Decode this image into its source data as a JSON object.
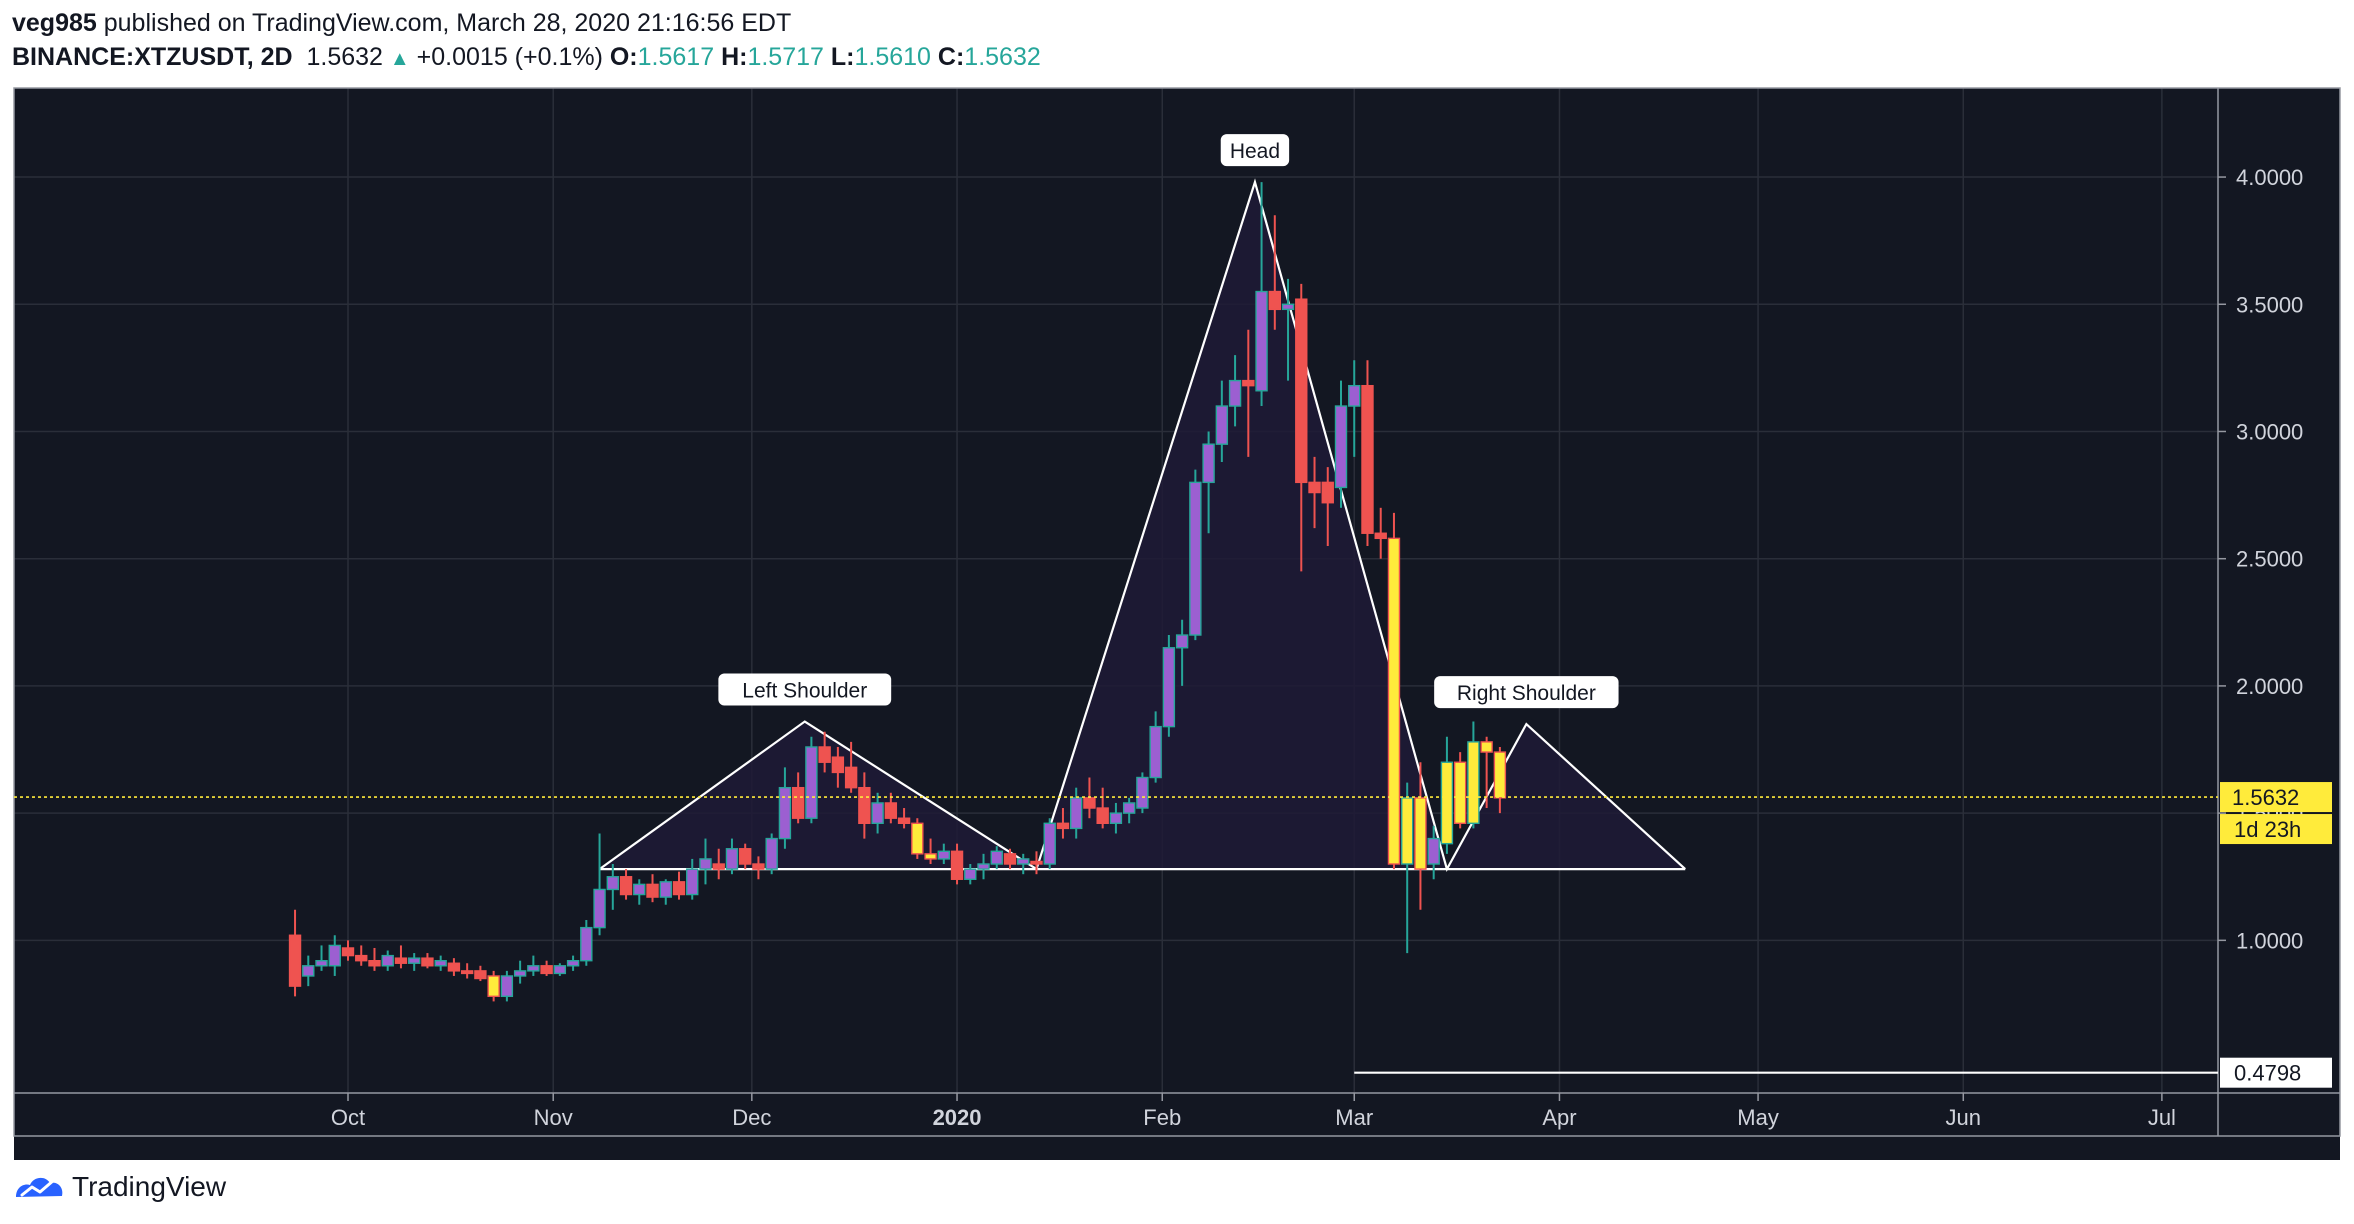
{
  "header": {
    "publisher": "veg985",
    "published_text": "published on TradingView.com, March 28, 2020 21:16:56 EDT",
    "symbol": "BINANCE:XTZUSDT, 2D",
    "last": "1.5632",
    "change": "+0.0015 (+0.1%)",
    "o_label": "O:",
    "o": "1.5617",
    "h_label": "H:",
    "h": "1.5717",
    "l_label": "L:",
    "l": "1.5610",
    "c_label": "C:",
    "c": "1.5632"
  },
  "footer": {
    "brand": "TradingView",
    "icon": "tradingview-logo-icon"
  },
  "colors": {
    "background": "#131722",
    "grid": "#2a2e39",
    "up": "#26a69a",
    "down": "#ef5350",
    "purple": "#9c5fd1",
    "yellow": "#ffeb3b",
    "pattern_fill": "#1e1a36",
    "pattern_line": "#ffffff",
    "price_line": "#ffeb3b"
  },
  "chart_data": {
    "type": "candlestick",
    "symbol": "BINANCE:XTZUSDT",
    "interval": "2D",
    "ylim": [
      0.4,
      4.35
    ],
    "y_ticks": [
      1.0,
      1.5,
      2.0,
      2.5,
      3.0,
      3.5,
      4.0
    ],
    "y_tick_labels": [
      "1.0000",
      "1.5000",
      "2.0000",
      "2.5000",
      "3.0000",
      "3.5000",
      "4.0000"
    ],
    "x_ticks": [
      {
        "label": "Oct",
        "date": "2019-10-01"
      },
      {
        "label": "Nov",
        "date": "2019-11-01"
      },
      {
        "label": "Dec",
        "date": "2019-12-01"
      },
      {
        "label": "2020",
        "date": "2020-01-01"
      },
      {
        "label": "Feb",
        "date": "2020-02-01"
      },
      {
        "label": "Mar",
        "date": "2020-03-01"
      },
      {
        "label": "Apr",
        "date": "2020-04-01"
      },
      {
        "label": "May",
        "date": "2020-05-01"
      },
      {
        "label": "Jun",
        "date": "2020-06-01"
      },
      {
        "label": "Jul",
        "date": "2020-07-01"
      }
    ],
    "current_price": 1.5632,
    "current_price_label": "1.5632",
    "countdown_label": "1d 23h",
    "bottom_line_value": 0.4798,
    "bottom_line_label": "0.4798",
    "bottom_line_start": "2020-03-01",
    "pattern": {
      "points": [
        {
          "date": "2019-11-08",
          "value": 1.28
        },
        {
          "date": "2019-12-09",
          "value": 1.86
        },
        {
          "date": "2020-01-13",
          "value": 1.28
        },
        {
          "date": "2020-02-15",
          "value": 3.98
        },
        {
          "date": "2020-03-15",
          "value": 1.28
        },
        {
          "date": "2020-03-27",
          "value": 1.85
        },
        {
          "date": "2020-04-20",
          "value": 1.28
        }
      ],
      "neckline": 1.28,
      "labels": [
        {
          "text": "Left Shoulder",
          "date": "2019-12-09",
          "value": 1.86
        },
        {
          "text": "Head",
          "date": "2020-02-15",
          "value": 3.98
        },
        {
          "text": "Right Shoulder",
          "date": "2020-03-27",
          "value": 1.85
        }
      ]
    },
    "candles": [
      {
        "date": "2019-09-23",
        "o": 1.02,
        "h": 1.12,
        "l": 0.78,
        "c": 0.82
      },
      {
        "date": "2019-09-25",
        "o": 0.86,
        "h": 0.94,
        "l": 0.82,
        "c": 0.9
      },
      {
        "date": "2019-09-27",
        "o": 0.9,
        "h": 0.98,
        "l": 0.88,
        "c": 0.92
      },
      {
        "date": "2019-09-29",
        "o": 0.9,
        "h": 1.02,
        "l": 0.86,
        "c": 0.98
      },
      {
        "date": "2019-10-01",
        "o": 0.97,
        "h": 1.0,
        "l": 0.92,
        "c": 0.94
      },
      {
        "date": "2019-10-03",
        "o": 0.94,
        "h": 0.98,
        "l": 0.9,
        "c": 0.92
      },
      {
        "date": "2019-10-05",
        "o": 0.92,
        "h": 0.97,
        "l": 0.88,
        "c": 0.9
      },
      {
        "date": "2019-10-07",
        "o": 0.9,
        "h": 0.96,
        "l": 0.88,
        "c": 0.94
      },
      {
        "date": "2019-10-09",
        "o": 0.93,
        "h": 0.98,
        "l": 0.89,
        "c": 0.91
      },
      {
        "date": "2019-10-11",
        "o": 0.91,
        "h": 0.95,
        "l": 0.88,
        "c": 0.93
      },
      {
        "date": "2019-10-13",
        "o": 0.93,
        "h": 0.95,
        "l": 0.89,
        "c": 0.9
      },
      {
        "date": "2019-10-15",
        "o": 0.9,
        "h": 0.94,
        "l": 0.88,
        "c": 0.92
      },
      {
        "date": "2019-10-17",
        "o": 0.91,
        "h": 0.93,
        "l": 0.86,
        "c": 0.88
      },
      {
        "date": "2019-10-19",
        "o": 0.88,
        "h": 0.91,
        "l": 0.85,
        "c": 0.87
      },
      {
        "date": "2019-10-21",
        "o": 0.88,
        "h": 0.9,
        "l": 0.84,
        "c": 0.85
      },
      {
        "date": "2019-10-23",
        "o": 0.86,
        "h": 0.88,
        "l": 0.76,
        "c": 0.78
      },
      {
        "date": "2019-10-25",
        "o": 0.78,
        "h": 0.88,
        "l": 0.76,
        "c": 0.86
      },
      {
        "date": "2019-10-27",
        "o": 0.86,
        "h": 0.92,
        "l": 0.83,
        "c": 0.88
      },
      {
        "date": "2019-10-29",
        "o": 0.88,
        "h": 0.94,
        "l": 0.86,
        "c": 0.9
      },
      {
        "date": "2019-10-31",
        "o": 0.9,
        "h": 0.92,
        "l": 0.86,
        "c": 0.87
      },
      {
        "date": "2019-11-02",
        "o": 0.87,
        "h": 0.91,
        "l": 0.86,
        "c": 0.9
      },
      {
        "date": "2019-11-04",
        "o": 0.9,
        "h": 0.94,
        "l": 0.88,
        "c": 0.92
      },
      {
        "date": "2019-11-06",
        "o": 0.92,
        "h": 1.08,
        "l": 0.9,
        "c": 1.05
      },
      {
        "date": "2019-11-08",
        "o": 1.05,
        "h": 1.42,
        "l": 1.02,
        "c": 1.2
      },
      {
        "date": "2019-11-10",
        "o": 1.2,
        "h": 1.3,
        "l": 1.12,
        "c": 1.25
      },
      {
        "date": "2019-11-12",
        "o": 1.25,
        "h": 1.28,
        "l": 1.16,
        "c": 1.18
      },
      {
        "date": "2019-11-14",
        "o": 1.18,
        "h": 1.24,
        "l": 1.14,
        "c": 1.22
      },
      {
        "date": "2019-11-16",
        "o": 1.22,
        "h": 1.26,
        "l": 1.15,
        "c": 1.17
      },
      {
        "date": "2019-11-18",
        "o": 1.17,
        "h": 1.24,
        "l": 1.14,
        "c": 1.23
      },
      {
        "date": "2019-11-20",
        "o": 1.23,
        "h": 1.27,
        "l": 1.16,
        "c": 1.18
      },
      {
        "date": "2019-11-22",
        "o": 1.18,
        "h": 1.32,
        "l": 1.16,
        "c": 1.28
      },
      {
        "date": "2019-11-24",
        "o": 1.28,
        "h": 1.4,
        "l": 1.22,
        "c": 1.32
      },
      {
        "date": "2019-11-26",
        "o": 1.3,
        "h": 1.36,
        "l": 1.24,
        "c": 1.28
      },
      {
        "date": "2019-11-28",
        "o": 1.28,
        "h": 1.4,
        "l": 1.26,
        "c": 1.36
      },
      {
        "date": "2019-11-30",
        "o": 1.36,
        "h": 1.38,
        "l": 1.28,
        "c": 1.3
      },
      {
        "date": "2019-12-02",
        "o": 1.3,
        "h": 1.33,
        "l": 1.24,
        "c": 1.28
      },
      {
        "date": "2019-12-04",
        "o": 1.28,
        "h": 1.42,
        "l": 1.26,
        "c": 1.4
      },
      {
        "date": "2019-12-06",
        "o": 1.4,
        "h": 1.68,
        "l": 1.36,
        "c": 1.6
      },
      {
        "date": "2019-12-08",
        "o": 1.6,
        "h": 1.66,
        "l": 1.46,
        "c": 1.48
      },
      {
        "date": "2019-12-10",
        "o": 1.48,
        "h": 1.8,
        "l": 1.46,
        "c": 1.76
      },
      {
        "date": "2019-12-12",
        "o": 1.76,
        "h": 1.82,
        "l": 1.66,
        "c": 1.7
      },
      {
        "date": "2019-12-14",
        "o": 1.72,
        "h": 1.76,
        "l": 1.6,
        "c": 1.66
      },
      {
        "date": "2019-12-16",
        "o": 1.68,
        "h": 1.78,
        "l": 1.58,
        "c": 1.6
      },
      {
        "date": "2019-12-18",
        "o": 1.6,
        "h": 1.66,
        "l": 1.4,
        "c": 1.46
      },
      {
        "date": "2019-12-20",
        "o": 1.46,
        "h": 1.58,
        "l": 1.42,
        "c": 1.54
      },
      {
        "date": "2019-12-22",
        "o": 1.54,
        "h": 1.58,
        "l": 1.46,
        "c": 1.48
      },
      {
        "date": "2019-12-24",
        "o": 1.48,
        "h": 1.52,
        "l": 1.44,
        "c": 1.46
      },
      {
        "date": "2019-12-26",
        "o": 1.46,
        "h": 1.48,
        "l": 1.32,
        "c": 1.34
      },
      {
        "date": "2019-12-28",
        "o": 1.34,
        "h": 1.4,
        "l": 1.3,
        "c": 1.32
      },
      {
        "date": "2019-12-30",
        "o": 1.32,
        "h": 1.38,
        "l": 1.3,
        "c": 1.35
      },
      {
        "date": "2020-01-01",
        "o": 1.35,
        "h": 1.38,
        "l": 1.22,
        "c": 1.24
      },
      {
        "date": "2020-01-03",
        "o": 1.24,
        "h": 1.3,
        "l": 1.22,
        "c": 1.28
      },
      {
        "date": "2020-01-05",
        "o": 1.28,
        "h": 1.34,
        "l": 1.24,
        "c": 1.3
      },
      {
        "date": "2020-01-07",
        "o": 1.3,
        "h": 1.37,
        "l": 1.28,
        "c": 1.35
      },
      {
        "date": "2020-01-09",
        "o": 1.34,
        "h": 1.36,
        "l": 1.28,
        "c": 1.3
      },
      {
        "date": "2020-01-11",
        "o": 1.3,
        "h": 1.34,
        "l": 1.26,
        "c": 1.32
      },
      {
        "date": "2020-01-13",
        "o": 1.31,
        "h": 1.35,
        "l": 1.26,
        "c": 1.3
      },
      {
        "date": "2020-01-15",
        "o": 1.3,
        "h": 1.48,
        "l": 1.28,
        "c": 1.46
      },
      {
        "date": "2020-01-17",
        "o": 1.46,
        "h": 1.52,
        "l": 1.4,
        "c": 1.44
      },
      {
        "date": "2020-01-19",
        "o": 1.44,
        "h": 1.6,
        "l": 1.4,
        "c": 1.56
      },
      {
        "date": "2020-01-21",
        "o": 1.56,
        "h": 1.64,
        "l": 1.48,
        "c": 1.52
      },
      {
        "date": "2020-01-23",
        "o": 1.52,
        "h": 1.6,
        "l": 1.44,
        "c": 1.46
      },
      {
        "date": "2020-01-25",
        "o": 1.46,
        "h": 1.54,
        "l": 1.42,
        "c": 1.5
      },
      {
        "date": "2020-01-27",
        "o": 1.5,
        "h": 1.56,
        "l": 1.46,
        "c": 1.54
      },
      {
        "date": "2020-01-29",
        "o": 1.52,
        "h": 1.66,
        "l": 1.5,
        "c": 1.64
      },
      {
        "date": "2020-01-31",
        "o": 1.64,
        "h": 1.9,
        "l": 1.62,
        "c": 1.84
      },
      {
        "date": "2020-02-02",
        "o": 1.84,
        "h": 2.2,
        "l": 1.8,
        "c": 2.15
      },
      {
        "date": "2020-02-04",
        "o": 2.15,
        "h": 2.26,
        "l": 2.0,
        "c": 2.2
      },
      {
        "date": "2020-02-06",
        "o": 2.2,
        "h": 2.85,
        "l": 2.18,
        "c": 2.8
      },
      {
        "date": "2020-02-08",
        "o": 2.8,
        "h": 3.0,
        "l": 2.6,
        "c": 2.95
      },
      {
        "date": "2020-02-10",
        "o": 2.95,
        "h": 3.2,
        "l": 2.88,
        "c": 3.1
      },
      {
        "date": "2020-02-12",
        "o": 3.1,
        "h": 3.3,
        "l": 3.02,
        "c": 3.2
      },
      {
        "date": "2020-02-14",
        "o": 3.2,
        "h": 3.4,
        "l": 2.9,
        "c": 3.18
      },
      {
        "date": "2020-02-16",
        "o": 3.16,
        "h": 3.98,
        "l": 3.1,
        "c": 3.55
      },
      {
        "date": "2020-02-18",
        "o": 3.55,
        "h": 3.85,
        "l": 3.4,
        "c": 3.48
      },
      {
        "date": "2020-02-20",
        "o": 3.48,
        "h": 3.6,
        "l": 3.2,
        "c": 3.5
      },
      {
        "date": "2020-02-22",
        "o": 3.52,
        "h": 3.58,
        "l": 2.45,
        "c": 2.8
      },
      {
        "date": "2020-02-24",
        "o": 2.8,
        "h": 2.9,
        "l": 2.62,
        "c": 2.76
      },
      {
        "date": "2020-02-26",
        "o": 2.8,
        "h": 2.86,
        "l": 2.55,
        "c": 2.72
      },
      {
        "date": "2020-02-28",
        "o": 2.78,
        "h": 3.2,
        "l": 2.7,
        "c": 3.1
      },
      {
        "date": "2020-03-01",
        "o": 3.1,
        "h": 3.28,
        "l": 2.9,
        "c": 3.18
      },
      {
        "date": "2020-03-03",
        "o": 3.18,
        "h": 3.28,
        "l": 2.55,
        "c": 2.6
      },
      {
        "date": "2020-03-05",
        "o": 2.6,
        "h": 2.7,
        "l": 2.5,
        "c": 2.58
      },
      {
        "date": "2020-03-07",
        "o": 2.58,
        "h": 2.68,
        "l": 1.28,
        "c": 1.3
      },
      {
        "date": "2020-03-09",
        "o": 1.3,
        "h": 1.62,
        "l": 0.95,
        "c": 1.56
      },
      {
        "date": "2020-03-11",
        "o": 1.56,
        "h": 1.7,
        "l": 1.12,
        "c": 1.28
      },
      {
        "date": "2020-03-13",
        "o": 1.3,
        "h": 1.45,
        "l": 1.24,
        "c": 1.4
      },
      {
        "date": "2020-03-15",
        "o": 1.38,
        "h": 1.8,
        "l": 1.34,
        "c": 1.7
      },
      {
        "date": "2020-03-17",
        "o": 1.7,
        "h": 1.74,
        "l": 1.44,
        "c": 1.46
      },
      {
        "date": "2020-03-19",
        "o": 1.46,
        "h": 1.86,
        "l": 1.44,
        "c": 1.78
      },
      {
        "date": "2020-03-21",
        "o": 1.78,
        "h": 1.8,
        "l": 1.52,
        "c": 1.74
      },
      {
        "date": "2020-03-23",
        "o": 1.74,
        "h": 1.76,
        "l": 1.5,
        "c": 1.56
      }
    ]
  }
}
